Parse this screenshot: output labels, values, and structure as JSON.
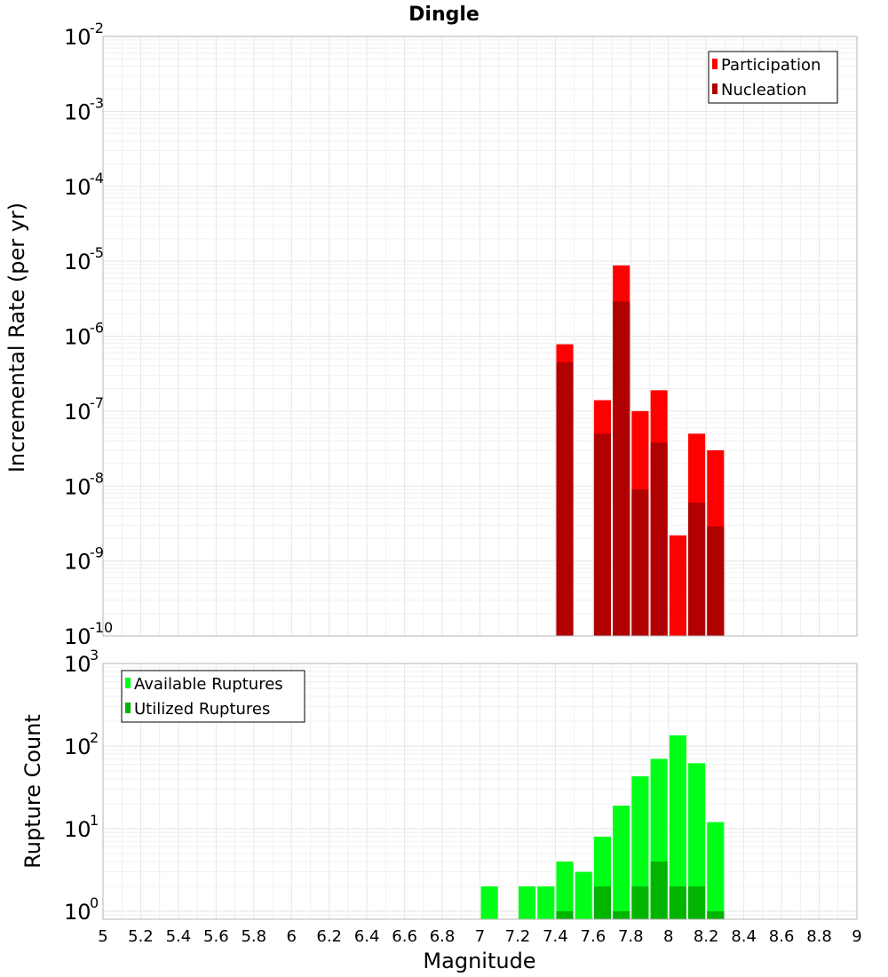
{
  "title": "Dingle",
  "xlabel": "Magnitude",
  "x_ticks": [
    "5",
    "5.2",
    "5.4",
    "5.6",
    "5.8",
    "6",
    "6.2",
    "6.4",
    "6.6",
    "6.8",
    "7",
    "7.2",
    "7.4",
    "7.6",
    "7.8",
    "8",
    "8.2",
    "8.4",
    "8.6",
    "8.8",
    "9"
  ],
  "chart_data": [
    {
      "type": "bar",
      "title": "Dingle",
      "ylabel": "Incremental Rate (per yr)",
      "yscale": "log",
      "xlim": [
        5,
        9
      ],
      "ylim": [
        1e-10,
        0.01
      ],
      "y_ticks": [
        {
          "base": "10",
          "exp": "-10",
          "value": 1e-10
        },
        {
          "base": "10",
          "exp": "-9",
          "value": 1e-09
        },
        {
          "base": "10",
          "exp": "-8",
          "value": 1e-08
        },
        {
          "base": "10",
          "exp": "-7",
          "value": 1e-07
        },
        {
          "base": "10",
          "exp": "-6",
          "value": 1e-06
        },
        {
          "base": "10",
          "exp": "-5",
          "value": 1e-05
        },
        {
          "base": "10",
          "exp": "-4",
          "value": 0.0001
        },
        {
          "base": "10",
          "exp": "-3",
          "value": 0.001
        },
        {
          "base": "10",
          "exp": "-2",
          "value": 0.01
        }
      ],
      "legend_position": "top-right",
      "bar_width": 0.09,
      "series": [
        {
          "name": "Participation",
          "color": "#ff0000",
          "points": [
            {
              "x": 7.45,
              "y": 7.8e-07
            },
            {
              "x": 7.65,
              "y": 1.4e-07
            },
            {
              "x": 7.75,
              "y": 8.8e-06
            },
            {
              "x": 7.85,
              "y": 1e-07
            },
            {
              "x": 7.95,
              "y": 1.9e-07
            },
            {
              "x": 8.05,
              "y": 2.2e-09
            },
            {
              "x": 8.15,
              "y": 5e-08
            },
            {
              "x": 8.25,
              "y": 3e-08
            }
          ]
        },
        {
          "name": "Nucleation",
          "color": "#b00000",
          "points": [
            {
              "x": 7.45,
              "y": 4.5e-07
            },
            {
              "x": 7.65,
              "y": 5e-08
            },
            {
              "x": 7.75,
              "y": 2.9e-06
            },
            {
              "x": 7.85,
              "y": 9e-09
            },
            {
              "x": 7.95,
              "y": 3.8e-08
            },
            {
              "x": 8.15,
              "y": 6e-09
            },
            {
              "x": 8.25,
              "y": 2.9e-09
            }
          ]
        }
      ]
    },
    {
      "type": "bar",
      "ylabel": "Rupture Count",
      "yscale": "log",
      "xlim": [
        5,
        9
      ],
      "ylim": [
        0.8,
        1000
      ],
      "y_ticks": [
        {
          "base": "10",
          "exp": "0",
          "value": 1
        },
        {
          "base": "10",
          "exp": "1",
          "value": 10
        },
        {
          "base": "10",
          "exp": "2",
          "value": 100
        },
        {
          "base": "10",
          "exp": "3",
          "value": 1000
        }
      ],
      "legend_position": "top-left",
      "bar_width": 0.09,
      "series": [
        {
          "name": "Available Ruptures",
          "color": "#00ff18",
          "points": [
            {
              "x": 7.05,
              "y": 2
            },
            {
              "x": 7.25,
              "y": 2
            },
            {
              "x": 7.35,
              "y": 2
            },
            {
              "x": 7.45,
              "y": 4
            },
            {
              "x": 7.55,
              "y": 3
            },
            {
              "x": 7.65,
              "y": 8
            },
            {
              "x": 7.75,
              "y": 19
            },
            {
              "x": 7.85,
              "y": 43
            },
            {
              "x": 7.95,
              "y": 70
            },
            {
              "x": 8.05,
              "y": 135
            },
            {
              "x": 8.15,
              "y": 62
            },
            {
              "x": 8.25,
              "y": 12
            }
          ]
        },
        {
          "name": "Utilized Ruptures",
          "color": "#00b400",
          "points": [
            {
              "x": 7.45,
              "y": 1
            },
            {
              "x": 7.65,
              "y": 2
            },
            {
              "x": 7.75,
              "y": 1
            },
            {
              "x": 7.85,
              "y": 2
            },
            {
              "x": 7.95,
              "y": 4
            },
            {
              "x": 8.05,
              "y": 2
            },
            {
              "x": 8.15,
              "y": 2
            },
            {
              "x": 8.25,
              "y": 1
            }
          ]
        }
      ]
    }
  ]
}
